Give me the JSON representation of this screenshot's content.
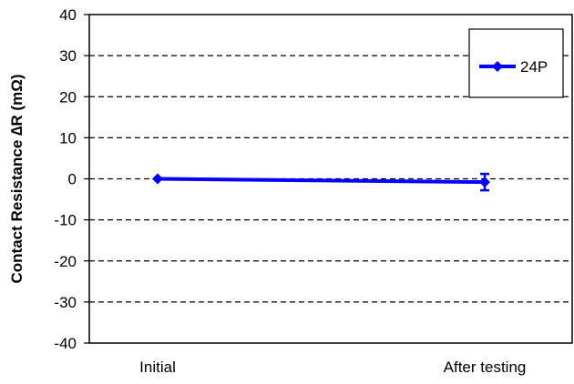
{
  "chart_data": {
    "type": "line",
    "title": "",
    "xlabel": "",
    "ylabel": "Contact Resistance ∆R (mΩ)",
    "categories": [
      "Initial",
      "After testing"
    ],
    "ylim": [
      -40,
      40
    ],
    "yticks": [
      40,
      30,
      20,
      10,
      0,
      -10,
      -20,
      -30,
      -40
    ],
    "grid": "horizontal dashed",
    "legend_position": "top-right",
    "series": [
      {
        "name": "24P",
        "color": "#0000ff",
        "marker": "diamond",
        "values": [
          0,
          -0.8
        ],
        "error": [
          0,
          2
        ]
      }
    ]
  }
}
